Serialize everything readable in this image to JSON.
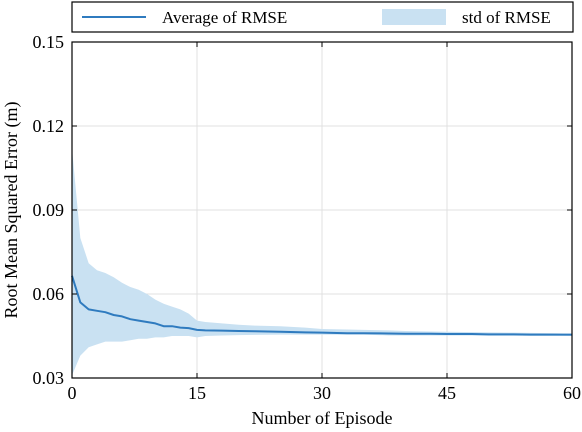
{
  "chart_data": {
    "type": "line",
    "title": "",
    "xlabel": "Number of Episode",
    "ylabel": "Root Mean Squared Error (m)",
    "xlim": [
      0,
      60
    ],
    "ylim": [
      0.03,
      0.15
    ],
    "xticks": [
      0,
      15,
      30,
      45,
      60
    ],
    "yticks": [
      0.03,
      0.06,
      0.09,
      0.12,
      0.15
    ],
    "xtick_labels": [
      "0",
      "15",
      "30",
      "45",
      "60"
    ],
    "ytick_labels": [
      "0.03",
      "0.06",
      "0.09",
      "0.12",
      "0.15"
    ],
    "grid": true,
    "legend_position": "top",
    "colors": {
      "line": "#2f7bbf",
      "band": "#c9e1f2",
      "grid": "#e0e0e0",
      "axis": "#000000"
    },
    "series": [
      {
        "name": "Average of RMSE",
        "kind": "line",
        "x": [
          0,
          1,
          2,
          3,
          4,
          5,
          6,
          7,
          8,
          9,
          10,
          11,
          12,
          13,
          14,
          15,
          16,
          18,
          20,
          22,
          25,
          28,
          30,
          33,
          35,
          38,
          40,
          43,
          45,
          48,
          50,
          53,
          55,
          58,
          60
        ],
        "y": [
          0.0665,
          0.057,
          0.0545,
          0.054,
          0.0535,
          0.0525,
          0.052,
          0.051,
          0.0505,
          0.05,
          0.0495,
          0.0485,
          0.0485,
          0.048,
          0.0478,
          0.0472,
          0.047,
          0.0469,
          0.0468,
          0.0467,
          0.0465,
          0.0463,
          0.0462,
          0.046,
          0.046,
          0.0459,
          0.0458,
          0.0458,
          0.0457,
          0.0457,
          0.0456,
          0.0456,
          0.0455,
          0.0455,
          0.0455
        ]
      },
      {
        "name": "std of RMSE",
        "kind": "band",
        "x": [
          0,
          1,
          2,
          3,
          4,
          5,
          6,
          7,
          8,
          9,
          10,
          11,
          12,
          13,
          14,
          15,
          16,
          18,
          20,
          22,
          25,
          28,
          30,
          33,
          35,
          38,
          40,
          43,
          45,
          48,
          50,
          53,
          55,
          58,
          60
        ],
        "lower": [
          0.031,
          0.038,
          0.041,
          0.042,
          0.043,
          0.043,
          0.043,
          0.0435,
          0.044,
          0.044,
          0.0445,
          0.0445,
          0.045,
          0.045,
          0.045,
          0.0445,
          0.045,
          0.0452,
          0.0453,
          0.0454,
          0.0455,
          0.0455,
          0.0455,
          0.0455,
          0.0455,
          0.0452,
          0.0452,
          0.0452,
          0.0452,
          0.0452,
          0.0451,
          0.0451,
          0.0451,
          0.0451,
          0.045
        ],
        "upper": [
          0.112,
          0.08,
          0.071,
          0.0685,
          0.0675,
          0.066,
          0.064,
          0.0625,
          0.0615,
          0.06,
          0.058,
          0.0565,
          0.0555,
          0.0545,
          0.053,
          0.0505,
          0.05,
          0.0495,
          0.049,
          0.0487,
          0.0485,
          0.048,
          0.0475,
          0.0473,
          0.0472,
          0.047,
          0.0468,
          0.0466,
          0.0465,
          0.0464,
          0.0463,
          0.0462,
          0.0461,
          0.046,
          0.0458
        ]
      }
    ]
  }
}
